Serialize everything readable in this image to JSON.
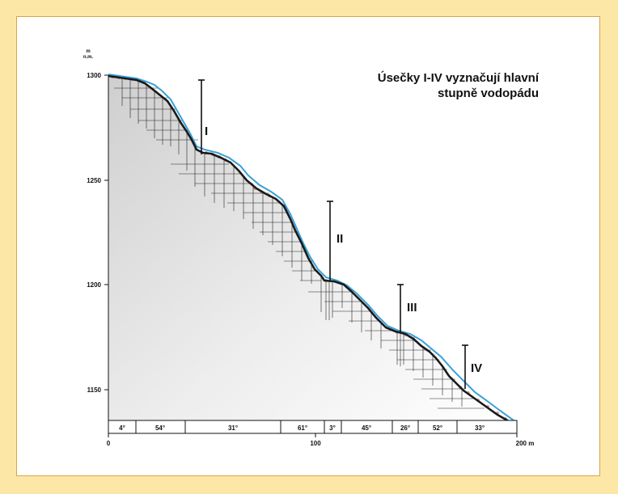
{
  "title_lines": [
    "Úsečky I-IV vyznačují hlavní",
    "stupně vodopádu"
  ],
  "y_axis": {
    "unit": "m\nn.m.",
    "ticks": [
      "1300",
      "1250",
      "1200",
      "1150"
    ]
  },
  "x_axis": {
    "ticks": [
      "0",
      "100",
      "200 m"
    ]
  },
  "segments": [
    "4°",
    "54°",
    "31°",
    "61°",
    "3°",
    "45°",
    "26°",
    "52°",
    "33°"
  ],
  "steps": [
    "I",
    "II",
    "III",
    "IV"
  ],
  "colors": {
    "page_background": "#fde7a6",
    "frame_border": "#d9a44a",
    "profile_line": "#1a1a1a",
    "water_line": "#3aa0d8",
    "gravel": "#d9a48a"
  }
}
